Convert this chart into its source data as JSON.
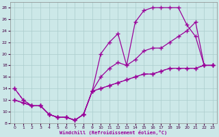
{
  "xlabel": "Windchill (Refroidissement éolien,°C)",
  "xlim": [
    0,
    23
  ],
  "ylim": [
    8,
    29
  ],
  "yticks": [
    8,
    10,
    12,
    14,
    16,
    18,
    20,
    22,
    24,
    26,
    28
  ],
  "xticks": [
    0,
    1,
    2,
    3,
    4,
    5,
    6,
    7,
    8,
    9,
    10,
    11,
    12,
    13,
    14,
    15,
    16,
    17,
    18,
    19,
    20,
    21,
    22,
    23
  ],
  "bg_color": "#cce8e8",
  "grid_color": "#aacccc",
  "line_color": "#990099",
  "curve1_x": [
    0,
    1,
    2,
    3,
    4,
    5,
    6,
    7,
    8,
    9,
    10,
    11,
    12,
    13,
    14,
    15,
    16,
    17,
    18,
    19,
    20,
    21,
    22,
    23
  ],
  "curve1_y": [
    14,
    12,
    11,
    11,
    9.5,
    9,
    9,
    8.5,
    9.5,
    13.5,
    20,
    22,
    23.5,
    18,
    25.5,
    27.5,
    28,
    28,
    28,
    28,
    25,
    23,
    18,
    18
  ],
  "curve2_x": [
    0,
    1,
    2,
    3,
    4,
    5,
    6,
    7,
    8,
    9,
    10,
    11,
    12,
    13,
    14,
    15,
    16,
    17,
    18,
    19,
    20,
    21,
    22,
    23
  ],
  "curve2_y": [
    12,
    11.5,
    11,
    11,
    9.5,
    9,
    9,
    8.5,
    9.5,
    13.5,
    16,
    17.5,
    18.5,
    18,
    19,
    20.5,
    21,
    21,
    22,
    23,
    24,
    25.5,
    18,
    18
  ],
  "curve3_x": [
    0,
    1,
    2,
    3,
    4,
    5,
    6,
    7,
    8,
    9,
    10,
    11,
    12,
    13,
    14,
    15,
    16,
    17,
    18,
    19,
    20,
    21,
    22,
    23
  ],
  "curve3_y": [
    14,
    12,
    11,
    11,
    9.5,
    9,
    9,
    8.5,
    9.5,
    13.5,
    14,
    14.5,
    15,
    15.5,
    16,
    16.5,
    16.5,
    17,
    17.5,
    17.5,
    17.5,
    17.5,
    18,
    18
  ],
  "curve4_x": [
    0,
    1,
    2,
    3,
    4,
    5,
    6,
    7,
    8,
    9,
    10,
    11,
    12,
    13,
    14,
    15,
    16,
    17,
    18,
    19,
    20,
    21,
    22,
    23
  ],
  "curve4_y": [
    12,
    11.5,
    11,
    11,
    9.5,
    9,
    9,
    8.5,
    9.5,
    13.5,
    14,
    14.5,
    15,
    15.5,
    16,
    16.5,
    16.5,
    17,
    17.5,
    17.5,
    17.5,
    17.5,
    18,
    18
  ]
}
